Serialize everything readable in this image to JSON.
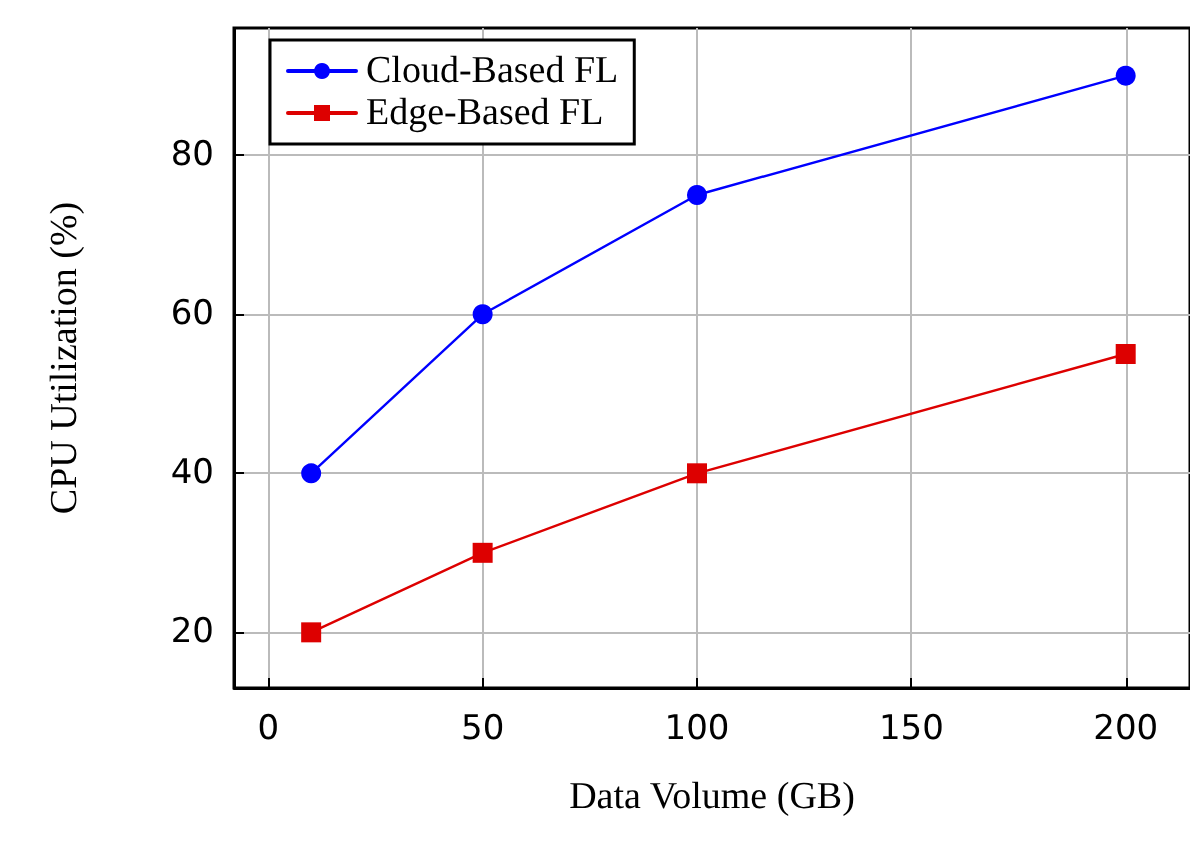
{
  "chart_data": {
    "type": "line",
    "xlabel": "Data Volume (GB)",
    "ylabel": "CPU Utilization (%)",
    "x": [
      10,
      50,
      100,
      200
    ],
    "series": [
      {
        "name": "Cloud-Based FL",
        "color": "#0000ff",
        "marker": "circle",
        "values": [
          40,
          60,
          75,
          90
        ]
      },
      {
        "name": "Edge-Based FL",
        "color": "#dd0000",
        "marker": "square",
        "values": [
          20,
          30,
          40,
          55
        ]
      }
    ],
    "xlim": [
      -8,
      215
    ],
    "xticks": [
      0,
      50,
      100,
      150,
      200
    ],
    "ylim": [
      13,
      96
    ],
    "yticks": [
      20,
      40,
      60,
      80
    ],
    "grid": true,
    "legend": "top left",
    "line_style": "solid"
  }
}
